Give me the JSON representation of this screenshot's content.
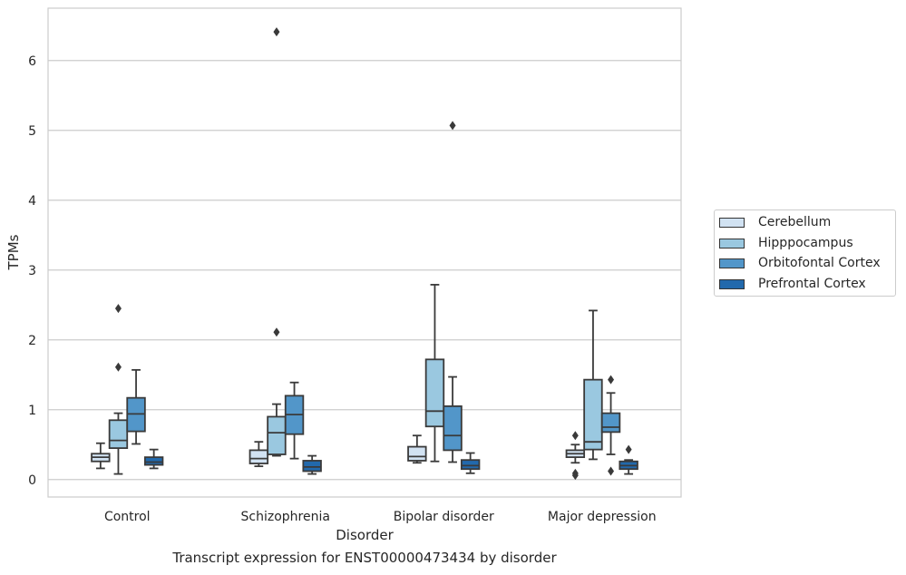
{
  "chart_data": {
    "type": "boxplot",
    "title": "",
    "caption": "Transcript expression for ENST00000473434 by disorder",
    "xlabel": "Disorder",
    "ylabel": "TPMs",
    "ylim": [
      -0.25,
      6.75
    ],
    "yticks": [
      0,
      1,
      2,
      3,
      4,
      5,
      6
    ],
    "grid": "horizontal",
    "legend_position": "right",
    "categories": [
      "Control",
      "Schizophrenia",
      "Bipolar disorder",
      "Major depression"
    ],
    "series": [
      {
        "name": "Cerebellum",
        "color": "#d1e2f2",
        "boxes": [
          {
            "whisker_low": 0.16,
            "q1": 0.26,
            "median": 0.32,
            "q3": 0.37,
            "whisker_high": 0.52,
            "outliers": []
          },
          {
            "whisker_low": 0.19,
            "q1": 0.23,
            "median": 0.3,
            "q3": 0.42,
            "whisker_high": 0.54,
            "outliers": []
          },
          {
            "whisker_low": 0.24,
            "q1": 0.27,
            "median": 0.33,
            "q3": 0.47,
            "whisker_high": 0.63,
            "outliers": []
          },
          {
            "whisker_low": 0.24,
            "q1": 0.32,
            "median": 0.37,
            "q3": 0.42,
            "whisker_high": 0.5,
            "outliers": [
              0.63,
              0.09,
              0.06
            ]
          }
        ]
      },
      {
        "name": "Hipppocampus",
        "color": "#9ac8e0",
        "boxes": [
          {
            "whisker_low": 0.08,
            "q1": 0.45,
            "median": 0.56,
            "q3": 0.85,
            "whisker_high": 0.95,
            "outliers": [
              2.45,
              1.61
            ]
          },
          {
            "whisker_low": 0.34,
            "q1": 0.36,
            "median": 0.67,
            "q3": 0.9,
            "whisker_high": 1.08,
            "outliers": [
              6.41,
              2.11
            ]
          },
          {
            "whisker_low": 0.26,
            "q1": 0.76,
            "median": 0.98,
            "q3": 1.72,
            "whisker_high": 2.79,
            "outliers": []
          },
          {
            "whisker_low": 0.29,
            "q1": 0.43,
            "median": 0.54,
            "q3": 1.43,
            "whisker_high": 2.42,
            "outliers": []
          }
        ]
      },
      {
        "name": "Orbitofontal Cortex",
        "color": "#5296c9",
        "boxes": [
          {
            "whisker_low": 0.51,
            "q1": 0.69,
            "median": 0.94,
            "q3": 1.17,
            "whisker_high": 1.57,
            "outliers": []
          },
          {
            "whisker_low": 0.3,
            "q1": 0.65,
            "median": 0.93,
            "q3": 1.2,
            "whisker_high": 1.39,
            "outliers": []
          },
          {
            "whisker_low": 0.25,
            "q1": 0.42,
            "median": 0.63,
            "q3": 1.05,
            "whisker_high": 1.47,
            "outliers": [
              5.07
            ]
          },
          {
            "whisker_low": 0.36,
            "q1": 0.68,
            "median": 0.75,
            "q3": 0.95,
            "whisker_high": 1.24,
            "outliers": [
              1.43,
              0.12
            ]
          }
        ]
      },
      {
        "name": "Prefrontal Cortex",
        "color": "#2269ac",
        "boxes": [
          {
            "whisker_low": 0.16,
            "q1": 0.21,
            "median": 0.25,
            "q3": 0.32,
            "whisker_high": 0.43,
            "outliers": []
          },
          {
            "whisker_low": 0.08,
            "q1": 0.12,
            "median": 0.18,
            "q3": 0.27,
            "whisker_high": 0.34,
            "outliers": []
          },
          {
            "whisker_low": 0.09,
            "q1": 0.15,
            "median": 0.2,
            "q3": 0.28,
            "whisker_high": 0.38,
            "outliers": []
          },
          {
            "whisker_low": 0.08,
            "q1": 0.15,
            "median": 0.2,
            "q3": 0.26,
            "whisker_high": 0.28,
            "outliers": [
              0.43
            ]
          }
        ]
      }
    ]
  }
}
